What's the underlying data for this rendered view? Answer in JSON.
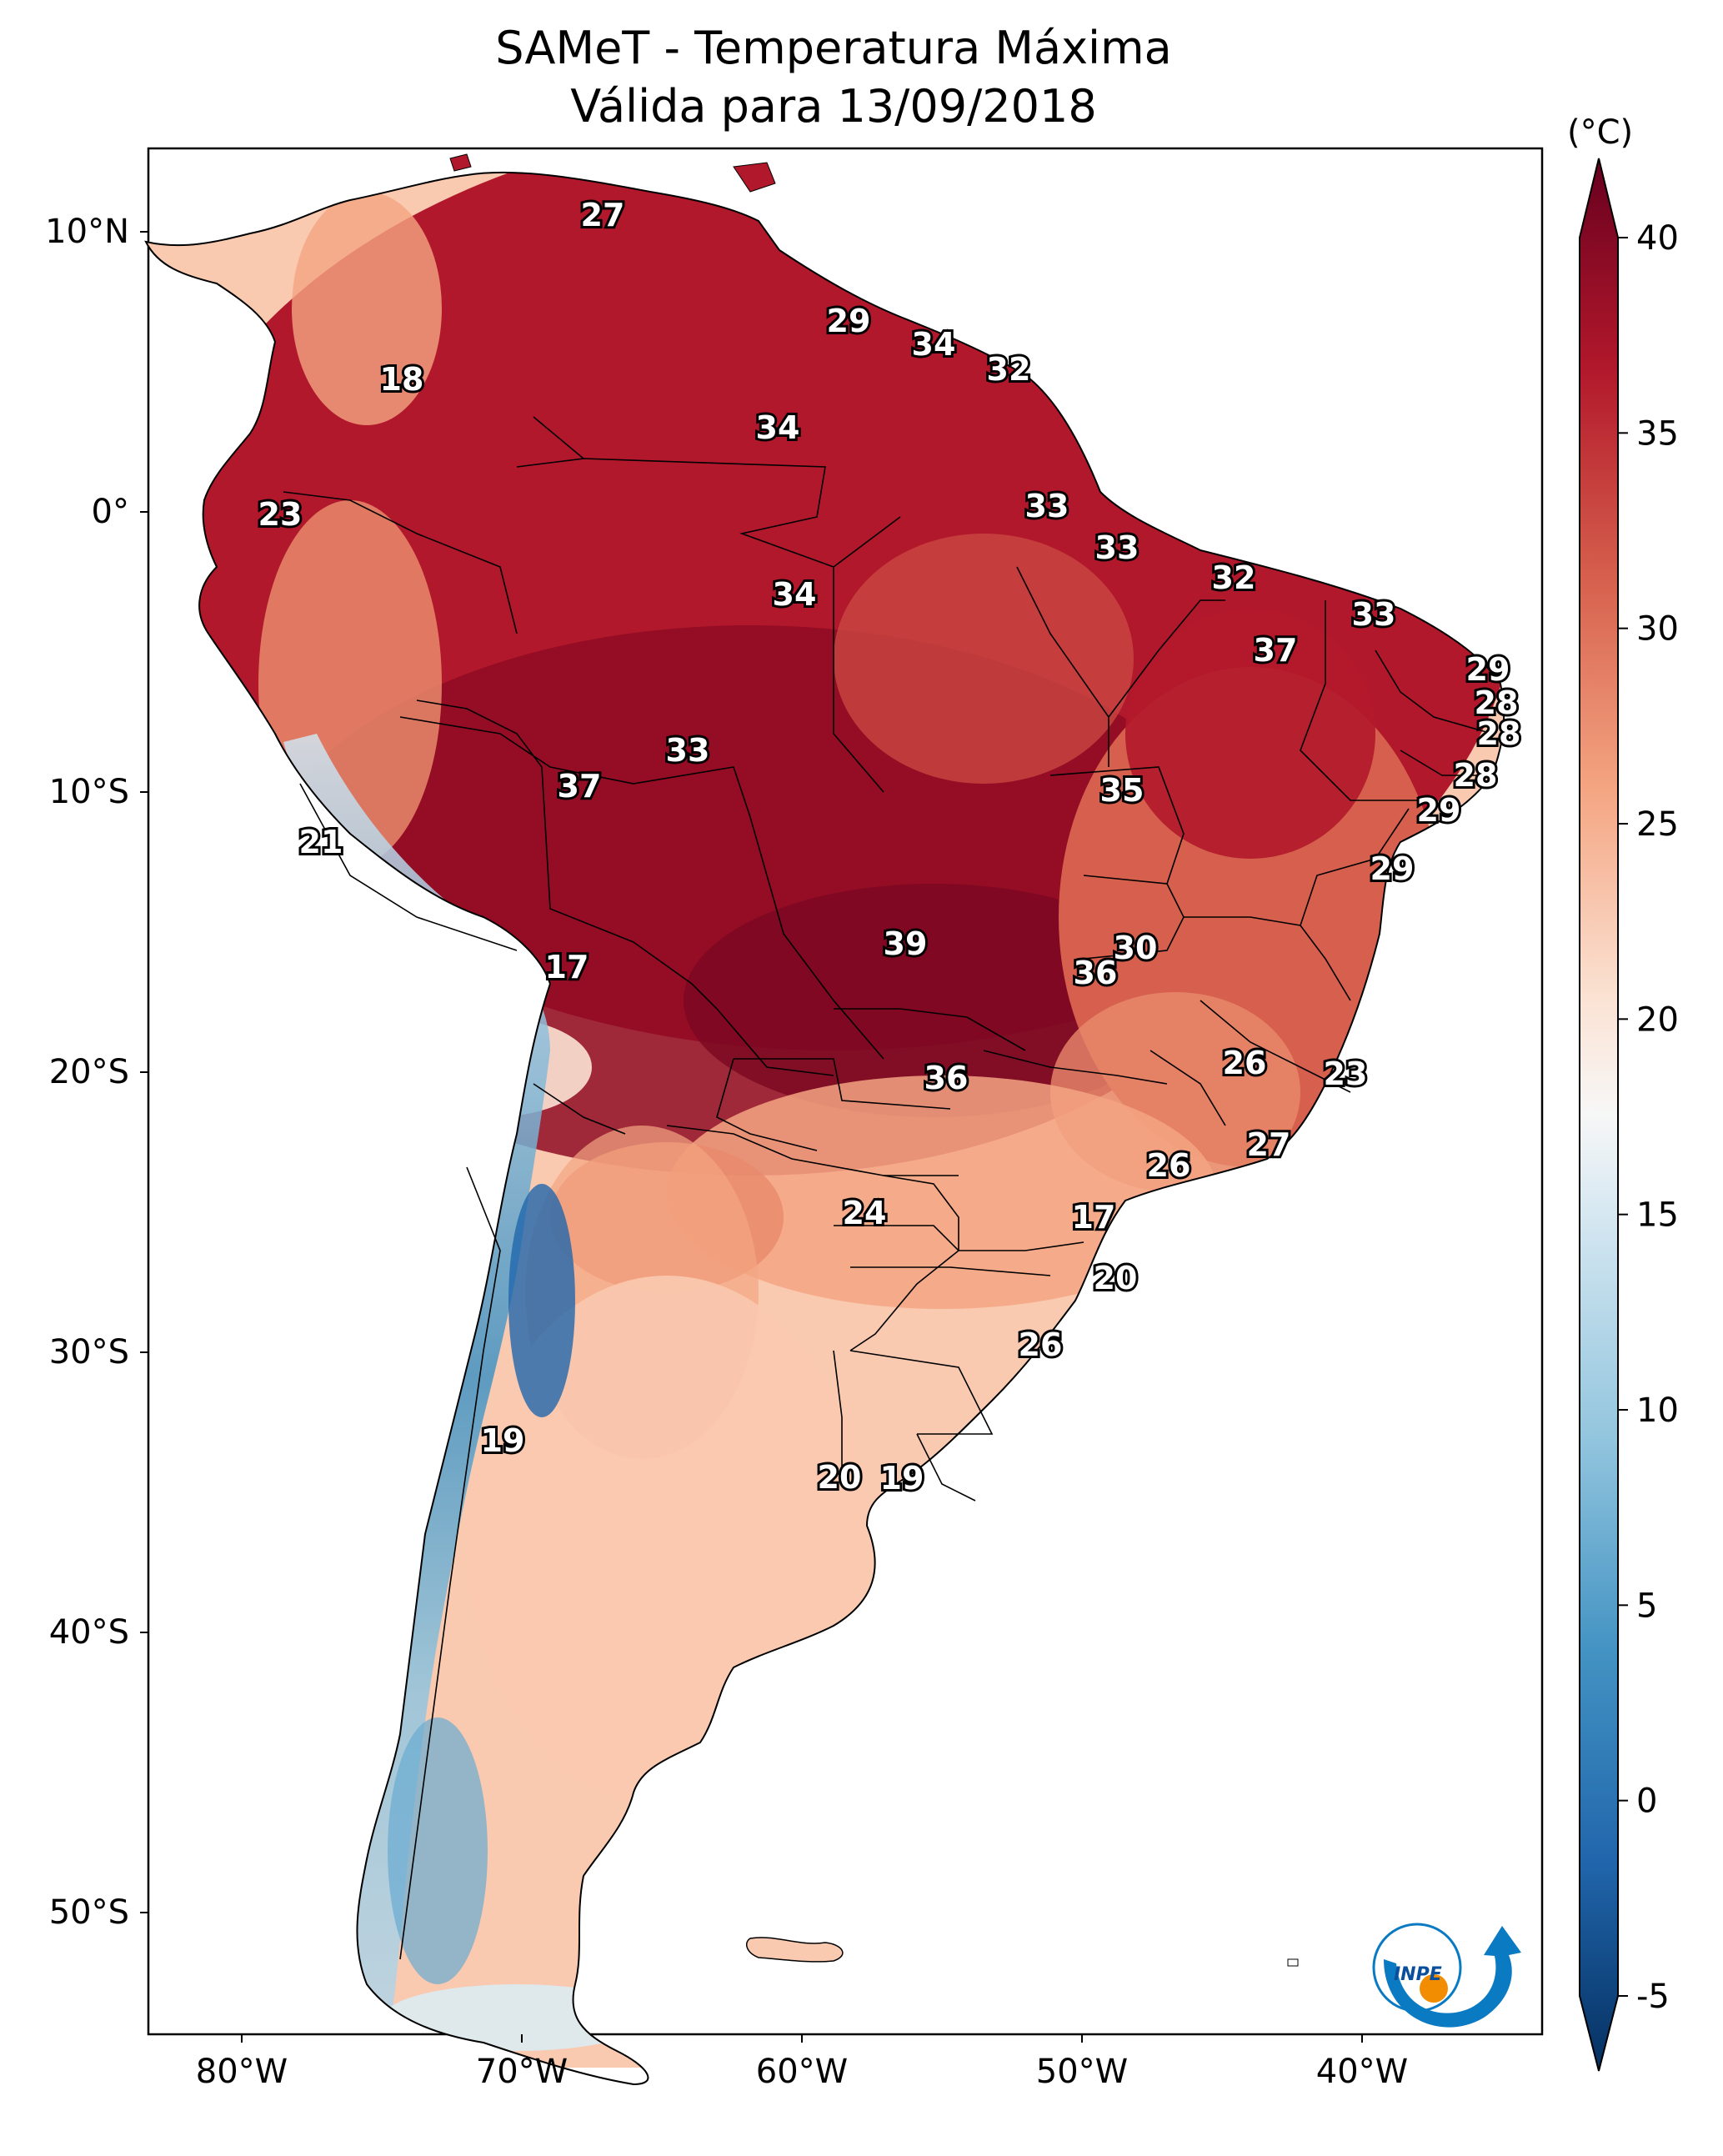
{
  "title_line1": "SAMeT - Temperatura Máxima",
  "title_line2": "Válida para 13/09/2018",
  "colorbar": {
    "unit": "(°C)",
    "min": -5,
    "max": 40,
    "ticks": [
      "40",
      "35",
      "30",
      "25",
      "20",
      "15",
      "10",
      "5",
      "0",
      "-5"
    ],
    "colors_high_to_low": [
      "#67001f",
      "#8f0c25",
      "#b2182b",
      "#c94741",
      "#d6604d",
      "#e8896c",
      "#f4a582",
      "#f9c9b0",
      "#fbe3d4",
      "#f7f7f7",
      "#dcebf2",
      "#d1e5f0",
      "#b4d5e7",
      "#92c5de",
      "#6aabd1",
      "#4393c3",
      "#2f79b5",
      "#2166ac",
      "#15508d",
      "#053061"
    ]
  },
  "axes": {
    "lat_labels": [
      "10°N",
      "0°",
      "10°S",
      "20°S",
      "30°S",
      "40°S",
      "50°S"
    ],
    "lon_labels": [
      "80°W",
      "70°W",
      "60°W",
      "50°W",
      "40°W"
    ]
  },
  "map_region": "South America",
  "logo_text": "INPE",
  "station_values": [
    {
      "value": "27",
      "color": "#b2182b"
    },
    {
      "value": "29",
      "color": "#b2182b"
    },
    {
      "value": "34",
      "color": "#b2182b"
    },
    {
      "value": "32",
      "color": "#b2182b"
    },
    {
      "value": "18",
      "color": "#b2182b"
    },
    {
      "value": "34",
      "color": "#b2182b"
    },
    {
      "value": "23",
      "color": "#d6604d"
    },
    {
      "value": "33",
      "color": "#b2182b"
    },
    {
      "value": "33",
      "color": "#b2182b"
    },
    {
      "value": "34",
      "color": "#b2182b"
    },
    {
      "value": "32",
      "color": "#b2182b"
    },
    {
      "value": "33",
      "color": "#b2182b"
    },
    {
      "value": "37",
      "color": "#b2182b"
    },
    {
      "value": "29",
      "color": "#d6604d"
    },
    {
      "value": "28",
      "color": "#d6604d"
    },
    {
      "value": "28",
      "color": "#d6604d"
    },
    {
      "value": "33",
      "color": "#b2182b"
    },
    {
      "value": "37",
      "color": "#b2182b"
    },
    {
      "value": "35",
      "color": "#b2182b"
    },
    {
      "value": "28",
      "color": "#d6604d"
    },
    {
      "value": "29",
      "color": "#d6604d"
    },
    {
      "value": "21",
      "color": "#92c5de"
    },
    {
      "value": "29",
      "color": "#d6604d"
    },
    {
      "value": "39",
      "color": "#8f0c25"
    },
    {
      "value": "30",
      "color": "#b2182b"
    },
    {
      "value": "17",
      "color": "#fbe3d4"
    },
    {
      "value": "36",
      "color": "#b2182b"
    },
    {
      "value": "26",
      "color": "#d6604d"
    },
    {
      "value": "23",
      "color": "#e8896c"
    },
    {
      "value": "36",
      "color": "#8f0c25"
    },
    {
      "value": "27",
      "color": "#d6604d"
    },
    {
      "value": "26",
      "color": "#e8896c"
    },
    {
      "value": "24",
      "color": "#f4a582"
    },
    {
      "value": "17",
      "color": "#fbe3d4"
    },
    {
      "value": "20",
      "color": "#fbe3d4"
    },
    {
      "value": "26",
      "color": "#f4a582"
    },
    {
      "value": "19",
      "color": "#2166ac"
    },
    {
      "value": "20",
      "color": "#f9c9b0"
    },
    {
      "value": "19",
      "color": "#f9c9b0"
    }
  ]
}
